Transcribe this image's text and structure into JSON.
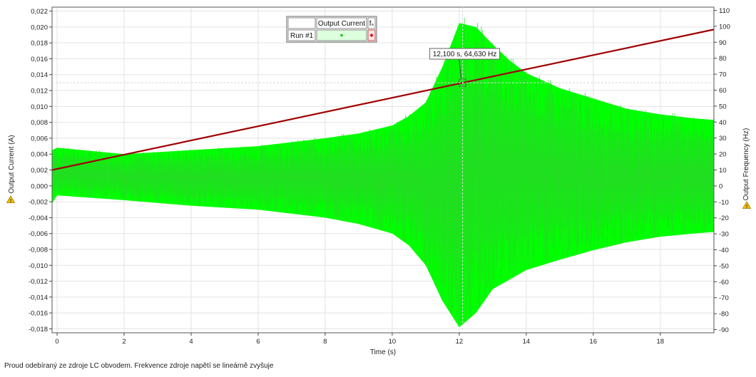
{
  "caption": "Proud odebíraný ze zdroje LC obvodem. Frekvence zdroje napětí se lineárně zvyšuje",
  "chart_data": {
    "type": "line",
    "title": "",
    "xlabel": "Time (s)",
    "ylabel_left": "Output Current (A)",
    "ylabel_right": "Output Frequency (Hz)",
    "xlim": [
      -0.15,
      19.6
    ],
    "ylim_left": [
      -0.0185,
      0.0225
    ],
    "ylim_right": [
      -92,
      112
    ],
    "x_ticks": [
      0,
      2,
      4,
      6,
      8,
      10,
      12,
      14,
      16,
      18
    ],
    "x_tick_labels": [
      "0",
      "2",
      "4",
      "6",
      "8",
      "10",
      "12",
      "14",
      "16",
      "18"
    ],
    "y_left_ticks": [
      0.022,
      0.02,
      0.018,
      0.016,
      0.014,
      0.012,
      0.01,
      0.008,
      0.006,
      0.004,
      0.002,
      0,
      -0.002,
      -0.004,
      -0.006,
      -0.008,
      -0.01,
      -0.012,
      -0.014,
      -0.016,
      -0.018
    ],
    "y_left_tick_labels": [
      "0,022",
      "0,020",
      "0,018",
      "0,016",
      "0,014",
      "0,012",
      "0,010",
      "0,008",
      "0,006",
      "0,004",
      "0,002",
      "0,000",
      "-0,002",
      "-0,004",
      "-0,006",
      "-0,008",
      "-0,010",
      "-0,012",
      "-0,014",
      "-0,016",
      "-0,018"
    ],
    "y_right_ticks": [
      110,
      100,
      90,
      80,
      70,
      60,
      50,
      40,
      30,
      20,
      10,
      0,
      -10,
      -20,
      -30,
      -40,
      -50,
      -60,
      -70,
      -80,
      -90
    ],
    "y_right_tick_labels": [
      "110",
      "100",
      "90",
      "80",
      "70",
      "60",
      "50",
      "40",
      "30",
      "20",
      "10",
      "0",
      "-10",
      "-20",
      "-30",
      "-40",
      "-50",
      "-60",
      "-70",
      "-80",
      "-90"
    ],
    "grid": true,
    "legend": {
      "placement": "top-center",
      "header_blank": "",
      "header_series": "Output Current",
      "header_unit": "fₛ",
      "row_label": "Run #1"
    },
    "series": [
      {
        "name": "Output Current",
        "axis": "left",
        "color": "#00ff00",
        "envelope": {
          "t": [
            -0.15,
            0,
            2,
            4,
            6,
            8,
            9,
            10,
            10.5,
            11,
            11.5,
            12,
            12.5,
            13,
            13.5,
            14,
            15,
            16,
            17,
            18,
            19,
            19.6
          ],
          "upper": [
            0.0045,
            0.0048,
            0.004,
            0.0045,
            0.005,
            0.006,
            0.0066,
            0.0076,
            0.0088,
            0.0105,
            0.015,
            0.0205,
            0.02,
            0.0178,
            0.0158,
            0.0142,
            0.0123,
            0.011,
            0.0097,
            0.009,
            0.0085,
            0.0083
          ],
          "lower": [
            -0.0022,
            -0.0012,
            -0.0018,
            -0.0025,
            -0.003,
            -0.004,
            -0.0048,
            -0.006,
            -0.0075,
            -0.01,
            -0.0145,
            -0.0178,
            -0.016,
            -0.013,
            -0.0118,
            -0.0106,
            -0.0093,
            -0.0081,
            -0.0071,
            -0.0064,
            -0.006,
            -0.0058
          ]
        }
      },
      {
        "name": "Output Frequency",
        "axis": "right",
        "color": "#a00000",
        "x": [
          -0.15,
          19.6
        ],
        "y": [
          10,
          98
        ]
      }
    ],
    "annotations": [
      {
        "text": "12,100 s, 64,630 Hz",
        "x": 12.1,
        "y": 64.63,
        "axis": "right"
      }
    ]
  }
}
